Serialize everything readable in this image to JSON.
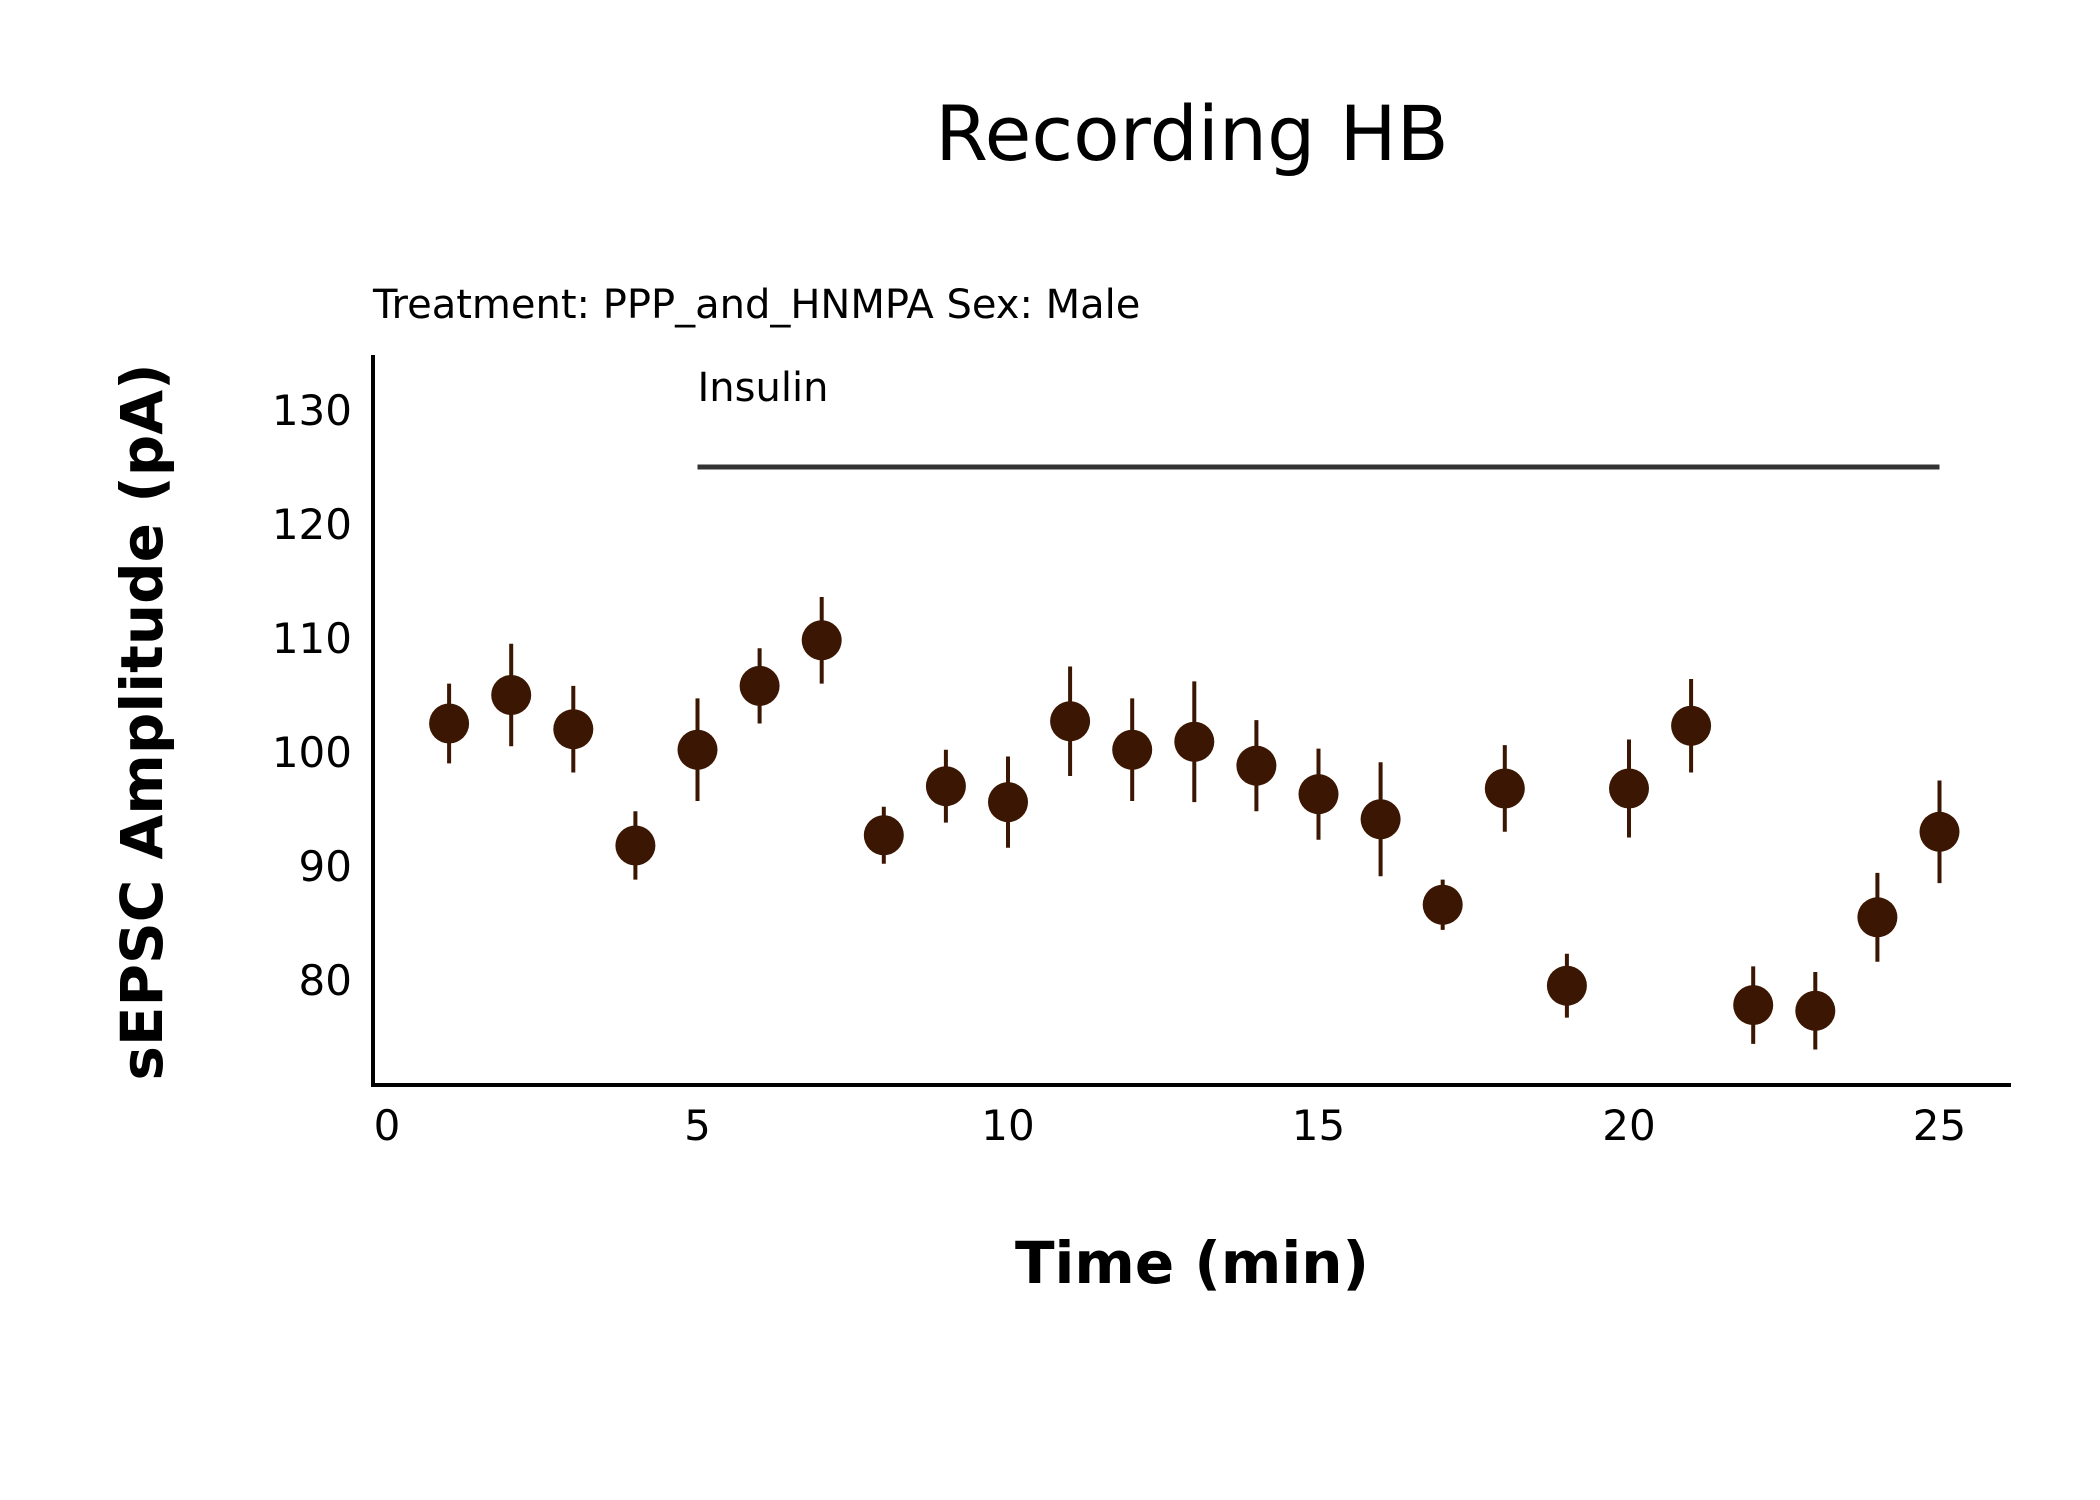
{
  "chart_data": {
    "type": "scatter",
    "title": "Recording HB",
    "subtitle": "Treatment: PPP_and_HNMPA  Sex: Male",
    "xlabel": "Time (min)",
    "ylabel": "sEPSC Amplitude (pA)",
    "xlim": [
      0,
      26.2
    ],
    "ylim": [
      71,
      135
    ],
    "xticks": [
      0,
      5,
      10,
      15,
      20,
      25
    ],
    "yticks": [
      80,
      90,
      100,
      110,
      120,
      130
    ],
    "grid": false,
    "point_color": "#3b1602",
    "errorbar_color": "#3b1602",
    "annotation": {
      "label": "Insulin",
      "x_start": 5,
      "x_end": 25,
      "y": 125,
      "color": "#333333"
    },
    "series": [
      {
        "x": [
          1,
          2,
          3,
          4,
          5,
          6,
          7,
          8,
          9,
          10,
          11,
          12,
          13,
          14,
          15,
          16,
          17,
          18,
          19,
          20,
          21,
          22,
          23,
          24,
          25
        ],
        "y": [
          102.5,
          105.0,
          102.0,
          91.8,
          100.2,
          105.8,
          109.8,
          92.7,
          97.0,
          95.6,
          102.7,
          100.2,
          100.9,
          98.8,
          96.3,
          94.1,
          86.6,
          96.8,
          79.5,
          96.8,
          102.3,
          77.8,
          77.3,
          85.5,
          93.0
        ],
        "err": [
          3.5,
          4.5,
          3.8,
          3.0,
          4.5,
          3.3,
          3.8,
          2.5,
          3.2,
          4.0,
          4.8,
          4.5,
          5.3,
          4.0,
          4.0,
          5.0,
          2.2,
          3.8,
          2.8,
          4.3,
          4.1,
          3.4,
          3.4,
          3.9,
          4.5
        ]
      }
    ]
  }
}
